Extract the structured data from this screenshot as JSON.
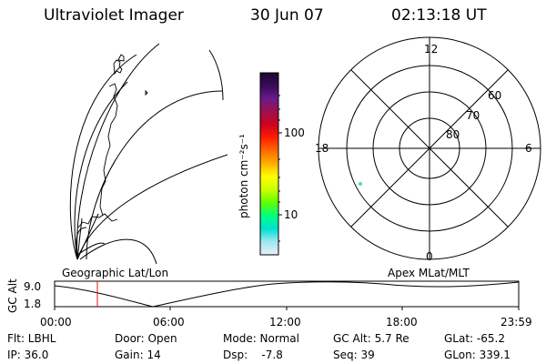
{
  "header": {
    "instrument": "Ultraviolet Imager",
    "date": "30 Jun 07",
    "time": "02:13:18 UT"
  },
  "colorbar": {
    "label": "photon cm⁻²s⁻¹",
    "ticks": [
      "100",
      "10"
    ],
    "scale": "log",
    "colors": [
      "#1a0a2e",
      "#3a0a5a",
      "#6a1a8a",
      "#a0104a",
      "#d00020",
      "#ff2000",
      "#ff6a00",
      "#ffb000",
      "#ffff00",
      "#c8ff00",
      "#60ff00",
      "#00ff80",
      "#00e0d0",
      "#a0e8f0",
      "#e8f0f8"
    ]
  },
  "left_panel": {
    "caption": "Geographic Lat/Lon"
  },
  "right_panel": {
    "caption": "Apex MLat/MLT",
    "mlt_labels": {
      "top": "12",
      "left": "18",
      "right": "6",
      "bottom": "0"
    },
    "lat_labels": [
      "80",
      "70",
      "60"
    ],
    "spot_color": "#40e0c0"
  },
  "altitude_strip": {
    "ylabel": "GC Alt",
    "yticks": [
      "9.0",
      "1.8"
    ],
    "xticks": [
      "00:00",
      "06:00",
      "12:00",
      "18:00",
      "23:59"
    ],
    "marker_color": "#e01010"
  },
  "info": {
    "flt": "Flt: LBHL",
    "ip": "IP: 36.0",
    "door": "Door: Open",
    "gain": "Gain: 14",
    "mode": "Mode: Normal",
    "dsp": "Dsp:    -7.8",
    "gcalt": "GC Alt: 5.7 Re",
    "seq": "Seq: 39",
    "glat": "GLat: -65.2",
    "glon": "GLon: 339.1"
  }
}
